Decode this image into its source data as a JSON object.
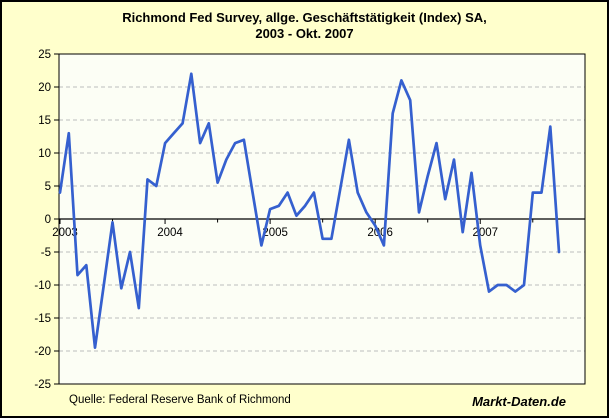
{
  "window": {
    "background": "#FFFFCC",
    "border_color": "#000000"
  },
  "title": {
    "line1": "Richmond Fed Survey, allge. Geschäftstätigkeit (Index) SA,",
    "line2": "2003 - Okt. 2007"
  },
  "footer": {
    "source": "Quelle: Federal Reserve Bank of Richmond",
    "brand": "Markt-Daten.de"
  },
  "chart_data": {
    "type": "line",
    "title": "Richmond Fed Survey, allge. Geschäftstätigkeit (Index) SA, 2003 - Okt. 2007",
    "x_start": "2003-01",
    "x_end": "2007-10",
    "frequency": "monthly",
    "x_tick_labels": [
      "2003",
      "2004",
      "2005",
      "2006",
      "2007"
    ],
    "ylim": [
      -25,
      25
    ],
    "ytick_step": 5,
    "grid": "horizontal-dashed",
    "legend": "none",
    "line_color": "#3560CF",
    "plot_bg": "#FCFEF5",
    "grid_color": "#BDBDBD",
    "series": [
      {
        "name": "Richmond Fed Survey, allgemeine Geschäftstätigkeit (Index) SA",
        "values": [
          4,
          13,
          -8.5,
          -7,
          -19.5,
          -10,
          -0.5,
          -10.5,
          -5,
          -13.5,
          6,
          5,
          11.5,
          13,
          14.5,
          22,
          11.5,
          14.5,
          5.5,
          9,
          11.5,
          12,
          4,
          -4,
          1.5,
          2,
          4,
          0.5,
          2,
          4,
          -3,
          -3,
          4.5,
          12,
          4,
          1,
          -1,
          -4,
          16,
          21,
          18,
          1,
          6.5,
          11.5,
          3,
          9,
          -2,
          7,
          -4,
          -11,
          -10,
          -10,
          -11,
          -10,
          4,
          4,
          14,
          -5
        ]
      }
    ]
  }
}
